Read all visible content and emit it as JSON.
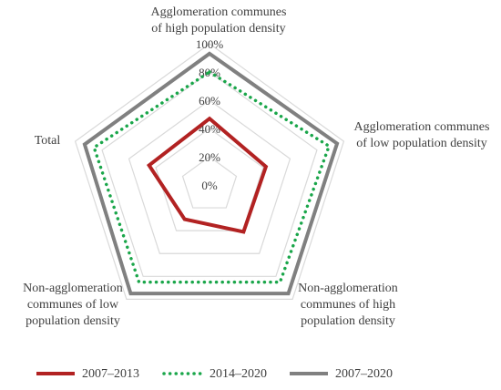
{
  "chart_data": {
    "type": "radar",
    "axes": [
      [
        "Agglomeration communes",
        "of high population density"
      ],
      [
        "Agglomeration communes",
        "of low population density"
      ],
      [
        "Non-agglomeration",
        "communes of high",
        "population density"
      ],
      [
        "Non-agglomeration",
        "communes of low",
        "population density"
      ],
      [
        "Total"
      ]
    ],
    "rlim": [
      0,
      100
    ],
    "ticks": [
      "0%",
      "20%",
      "40%",
      "60%",
      "80%",
      "100%"
    ],
    "tick_values": [
      0,
      20,
      40,
      60,
      80,
      100
    ],
    "grid": true,
    "legend_position": "bottom",
    "series": [
      {
        "name": "2007–2013",
        "values": [
          47,
          42,
          41,
          30,
          45
        ],
        "color": "#b22222",
        "style": "solid"
      },
      {
        "name": "2014–2020",
        "values": [
          80,
          89,
          85,
          85,
          86
        ],
        "color": "#1aa64a",
        "style": "dotted"
      },
      {
        "name": "2007–2020",
        "values": [
          93,
          95,
          95,
          95,
          93
        ],
        "color": "#808080",
        "style": "solid"
      }
    ],
    "colors": {
      "grid": "#d9d9d9"
    }
  }
}
